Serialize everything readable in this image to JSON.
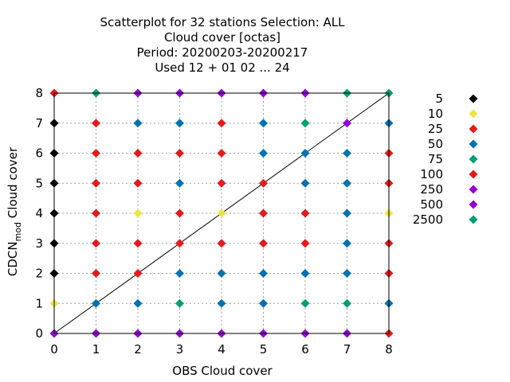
{
  "chart_data": {
    "type": "scatter",
    "title_lines": [
      "Scatterplot for   32 stations Selection: ALL",
      "Cloud cover [octas]",
      "Period: 20200203-20200217",
      "Used  12 + 01 02 ... 24"
    ],
    "xlabel": "OBS Cloud cover",
    "ylabel_main": "CDCN",
    "ylabel_sub": "mod",
    "ylabel_rest": " Cloud cover",
    "xlim": [
      0,
      8
    ],
    "ylim": [
      0,
      8
    ],
    "xticks": [
      "0",
      "1",
      "2",
      "3",
      "4",
      "5",
      "6",
      "7",
      "8"
    ],
    "yticks": [
      "0",
      "1",
      "2",
      "3",
      "4",
      "5",
      "6",
      "7",
      "8"
    ],
    "grid": true,
    "diagonal": true,
    "legend_position": "right",
    "classes": [
      {
        "label": "5",
        "color": "#000000"
      },
      {
        "label": "10",
        "color": "#f0e442"
      },
      {
        "label": "25",
        "color": "#e41a1c"
      },
      {
        "label": "50",
        "color": "#0072b2"
      },
      {
        "label": "75",
        "color": "#009e73"
      },
      {
        "label": "100",
        "color": "#e41a1c"
      },
      {
        "label": "250",
        "color": "#9400d3"
      },
      {
        "label": "500",
        "color": "#9400d3"
      },
      {
        "label": "2500",
        "color": "#009e73"
      }
    ],
    "points": [
      [
        0,
        0,
        6
      ],
      [
        0,
        1,
        1
      ],
      [
        0,
        2,
        0
      ],
      [
        0,
        3,
        0
      ],
      [
        0,
        4,
        0
      ],
      [
        0,
        5,
        0
      ],
      [
        0,
        6,
        0
      ],
      [
        0,
        7,
        0
      ],
      [
        0,
        8,
        2
      ],
      [
        1,
        0,
        6
      ],
      [
        1,
        1,
        3
      ],
      [
        1,
        2,
        2
      ],
      [
        1,
        3,
        2
      ],
      [
        1,
        4,
        2
      ],
      [
        1,
        5,
        2
      ],
      [
        1,
        6,
        2
      ],
      [
        1,
        7,
        2
      ],
      [
        1,
        8,
        4
      ],
      [
        2,
        0,
        6
      ],
      [
        2,
        1,
        3
      ],
      [
        2,
        2,
        2
      ],
      [
        2,
        3,
        2
      ],
      [
        2,
        4,
        1
      ],
      [
        2,
        5,
        2
      ],
      [
        2,
        6,
        2
      ],
      [
        2,
        7,
        3
      ],
      [
        2,
        8,
        6
      ],
      [
        3,
        0,
        6
      ],
      [
        3,
        1,
        4
      ],
      [
        3,
        2,
        3
      ],
      [
        3,
        3,
        2
      ],
      [
        3,
        4,
        2
      ],
      [
        3,
        5,
        3
      ],
      [
        3,
        6,
        2
      ],
      [
        3,
        7,
        3
      ],
      [
        3,
        8,
        6
      ],
      [
        4,
        0,
        6
      ],
      [
        4,
        1,
        3
      ],
      [
        4,
        2,
        3
      ],
      [
        4,
        3,
        2
      ],
      [
        4,
        4,
        1
      ],
      [
        4,
        5,
        2
      ],
      [
        4,
        6,
        2
      ],
      [
        4,
        7,
        2
      ],
      [
        4,
        8,
        6
      ],
      [
        5,
        0,
        6
      ],
      [
        5,
        1,
        3
      ],
      [
        5,
        2,
        3
      ],
      [
        5,
        3,
        2
      ],
      [
        5,
        4,
        2
      ],
      [
        5,
        5,
        2
      ],
      [
        5,
        6,
        3
      ],
      [
        5,
        7,
        3
      ],
      [
        5,
        8,
        6
      ],
      [
        6,
        0,
        6
      ],
      [
        6,
        1,
        4
      ],
      [
        6,
        2,
        3
      ],
      [
        6,
        3,
        2
      ],
      [
        6,
        4,
        2
      ],
      [
        6,
        5,
        3
      ],
      [
        6,
        6,
        3
      ],
      [
        6,
        7,
        4
      ],
      [
        6,
        8,
        6
      ],
      [
        7,
        0,
        6
      ],
      [
        7,
        1,
        4
      ],
      [
        7,
        2,
        3
      ],
      [
        7,
        3,
        3
      ],
      [
        7,
        4,
        3
      ],
      [
        7,
        5,
        3
      ],
      [
        7,
        6,
        3
      ],
      [
        7,
        7,
        6
      ],
      [
        7,
        8,
        4
      ],
      [
        8,
        0,
        2
      ],
      [
        8,
        1,
        3
      ],
      [
        8,
        2,
        2
      ],
      [
        8,
        3,
        2
      ],
      [
        8,
        4,
        1
      ],
      [
        8,
        5,
        2
      ],
      [
        8,
        6,
        2
      ],
      [
        8,
        7,
        3
      ],
      [
        8,
        8,
        4
      ]
    ]
  }
}
